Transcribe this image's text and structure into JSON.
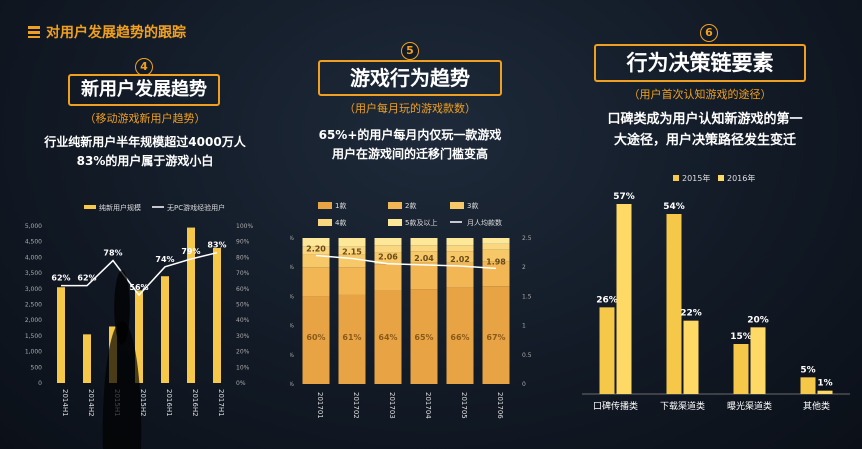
{
  "slide": {
    "title": "对用户发展趋势的跟踪"
  },
  "panels": [
    {
      "badge": "4",
      "heading": "新用户发展趋势",
      "subtitle": "（移动游戏新用户趋势）",
      "desc": [
        "行业纯新用户半年规模超过4000万人",
        "83%的用户属于游戏小白"
      ]
    },
    {
      "badge": "5",
      "heading": "游戏行为趋势",
      "subtitle": "（用户每月玩的游戏款数）",
      "desc": [
        "65%+的用户每月内仅玩一款游戏",
        "用户在游戏间的迁移门槛变高"
      ]
    },
    {
      "badge": "6",
      "heading": "行为决策链要素",
      "subtitle": "（用户首次认知游戏的途径）",
      "desc": [
        "口碑类成为用户认知新游戏的第一",
        "大途径，用户决策路径发生变迁"
      ]
    }
  ],
  "colors": {
    "accent": "#f0a020",
    "bar_yellow": "#f5c84a",
    "line_white": "#ffffff"
  },
  "chart_data": [
    {
      "type": "bar",
      "categories": [
        "2014H1",
        "2014H2",
        "2015H1",
        "2015H2",
        "2016H1",
        "2016H2",
        "2017H1"
      ],
      "series": [
        {
          "name": "纯新用户规模",
          "type": "bar",
          "axis": "left",
          "values": [
            3050,
            1550,
            1800,
            2950,
            3400,
            4950,
            4300
          ]
        },
        {
          "name": "无PC游戏经验用户",
          "type": "line",
          "axis": "right",
          "values": [
            62,
            62,
            78,
            56,
            74,
            79,
            83
          ]
        }
      ],
      "data_labels": [
        "62%",
        "62%",
        "78%",
        "56%",
        "74%",
        "79%",
        "83%"
      ],
      "y_left": {
        "ticks": [
          "0",
          "500",
          "1,000",
          "1,500",
          "2,000",
          "2,500",
          "3,000",
          "3,500",
          "4,000",
          "4,500",
          "5,000"
        ],
        "range": [
          0,
          5000
        ]
      },
      "y_right": {
        "ticks": [
          "0%",
          "10%",
          "20%",
          "30%",
          "40%",
          "50%",
          "60%",
          "70%",
          "80%",
          "90%",
          "100%"
        ],
        "range": [
          0,
          100
        ]
      },
      "legend": "top"
    },
    {
      "type": "bar",
      "stacked": true,
      "categories": [
        "201701",
        "201702",
        "201703",
        "201704",
        "201705",
        "201706"
      ],
      "series": [
        {
          "name": "1款",
          "values": [
            60,
            61,
            64,
            65,
            66,
            67
          ],
          "color": "#e8a444"
        },
        {
          "name": "2款",
          "values": [
            20,
            19,
            18,
            18,
            17,
            17
          ],
          "color": "#f2b655"
        },
        {
          "name": "3款",
          "values": [
            9,
            9,
            8,
            8,
            8,
            8
          ],
          "color": "#f7c868"
        },
        {
          "name": "4款",
          "values": [
            5,
            5,
            5,
            4,
            4,
            4
          ],
          "color": "#fad77e"
        },
        {
          "name": "5款及以上",
          "values": [
            6,
            6,
            5,
            5,
            5,
            4
          ],
          "color": "#fde89a"
        },
        {
          "name": "月人均款数",
          "type": "line",
          "axis": "right",
          "values": [
            2.2,
            2.15,
            2.06,
            2.04,
            2.02,
            1.98
          ]
        }
      ],
      "bottom_labels": [
        "60%",
        "61%",
        "64%",
        "65%",
        "66%",
        "67%"
      ],
      "line_labels": [
        "2.20",
        "2.15",
        "2.06",
        "2.04",
        "2.02",
        "1.98"
      ],
      "y_left": {
        "ticks": [
          "0%",
          "20%",
          "40%",
          "60%",
          "80%",
          "100%"
        ],
        "range": [
          0,
          100
        ]
      },
      "y_right": {
        "ticks": [
          "0",
          "0.5",
          "1",
          "1.5",
          "2",
          "2.5"
        ],
        "range": [
          0,
          2.5
        ]
      },
      "legend": "top"
    },
    {
      "type": "bar",
      "categories": [
        "口碑传播类",
        "下载渠道类",
        "曝光渠道类",
        "其他类"
      ],
      "series": [
        {
          "name": "2015年",
          "values": [
            26,
            54,
            15,
            5
          ],
          "color": "#f5c84a"
        },
        {
          "name": "2016年",
          "values": [
            57,
            22,
            20,
            1
          ],
          "color": "#ffd966"
        }
      ],
      "labels_2015": [
        "26%",
        "54%",
        "15%",
        "5%"
      ],
      "labels_2016": [
        "57%",
        "22%",
        "20%",
        "1%"
      ],
      "legend": "top-right"
    }
  ]
}
